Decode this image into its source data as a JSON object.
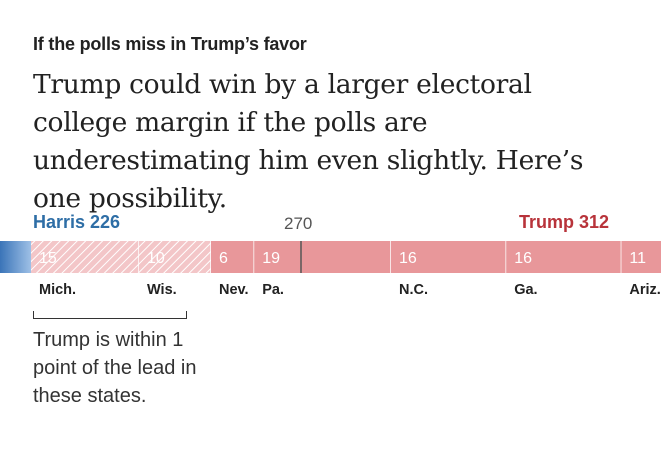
{
  "header": {
    "kicker": "If the polls miss in Trump’s favor",
    "headline": "Trump could win by a larger electoral college margin if the polls are underestimating him even slightly. Here’s one possibility."
  },
  "chart_data": {
    "type": "bar",
    "total": 538,
    "threshold": 270,
    "threshold_label": "270",
    "harris": {
      "label": "Harris 226",
      "votes": 226,
      "color": "#2e6ea6"
    },
    "trump": {
      "label": "Trump 312",
      "votes": 312,
      "color": "#b8333a"
    },
    "states": [
      {
        "name": "Mich.",
        "votes": 15,
        "value_label": "15",
        "style": "hatched"
      },
      {
        "name": "Wis.",
        "votes": 10,
        "value_label": "10",
        "style": "hatched"
      },
      {
        "name": "Nev.",
        "votes": 6,
        "value_label": "6",
        "style": "solid"
      },
      {
        "name": "Pa.",
        "votes": 19,
        "value_label": "19",
        "style": "solid"
      },
      {
        "name": "N.C.",
        "votes": 16,
        "value_label": "16",
        "style": "solid"
      },
      {
        "name": "Ga.",
        "votes": 16,
        "value_label": "16",
        "style": "solid"
      },
      {
        "name": "Ariz.",
        "votes": 11,
        "value_label": "11",
        "style": "solid"
      }
    ],
    "colors": {
      "battleground_trump": "#e8979a",
      "hatched_fill": "#f3c6c8",
      "safe_blue": "#3a74b8",
      "safe_red": "#c23a40"
    },
    "annotation": "Trump is within 1 point of the lead in these states."
  }
}
